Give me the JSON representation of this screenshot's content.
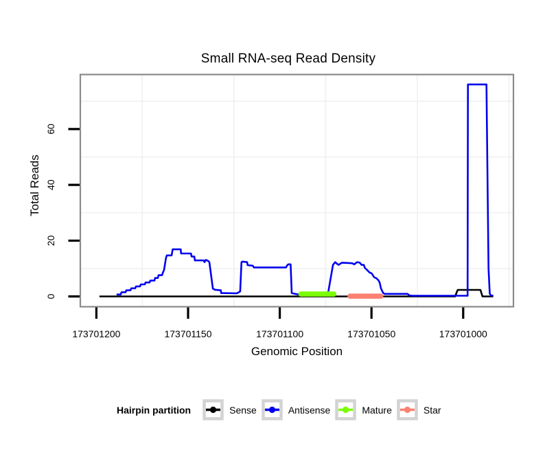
{
  "chart_data": {
    "type": "line",
    "title": "Small RNA-seq Read Density",
    "xlabel": "Genomic Position",
    "ylabel": "Total Reads",
    "x_axis": {
      "ticks": [
        173701200,
        173701150,
        173701100,
        173701050,
        173701000
      ],
      "direction": "decreasing-left-to-right",
      "range_left_to_right": [
        173701209,
        173700973
      ]
    },
    "y_axis": {
      "ticks": [
        0,
        20,
        40,
        60
      ],
      "range": [
        -4,
        80.5
      ]
    },
    "grid": {
      "x_minor_lines": [
        173701175,
        173701125,
        173701075,
        173701025,
        173700975
      ],
      "y_minor_lines": [
        10,
        30,
        50,
        70
      ],
      "color": "#f0f0f0"
    },
    "legend": {
      "title": "Hairpin partition",
      "position": "bottom",
      "entries": [
        {
          "id": "sense",
          "label": "Sense",
          "color": "#000000"
        },
        {
          "id": "antisense",
          "label": "Antisense",
          "color": "#0000EE"
        },
        {
          "id": "mature",
          "label": "Mature",
          "color": "#7CFC00"
        },
        {
          "id": "star",
          "label": "Star",
          "color": "#FA8072"
        }
      ],
      "key_box_border_color": "#D3D3D3"
    },
    "series": [
      {
        "name": "Sense",
        "color": "#000000",
        "line_width": 2.6,
        "points": [
          [
            173701198.3,
            0
          ],
          [
            173701004.4,
            0
          ],
          [
            173701003.0,
            2.35
          ],
          [
            173700990.6,
            2.35
          ],
          [
            173700989.5,
            0
          ],
          [
            173700983.6,
            0
          ]
        ]
      },
      {
        "name": "Antisense",
        "color": "#0000EE",
        "line_width": 2.6,
        "points": [
          [
            173701189.0,
            0.7
          ],
          [
            173701186.7,
            0.7
          ],
          [
            173701186.3,
            1.5
          ],
          [
            173701184.1,
            1.5
          ],
          [
            173701183.7,
            2.2
          ],
          [
            173701181.4,
            2.2
          ],
          [
            173701181.0,
            2.9
          ],
          [
            173701178.8,
            2.9
          ],
          [
            173701178.4,
            3.6
          ],
          [
            173701176.2,
            3.6
          ],
          [
            173701175.8,
            4.3
          ],
          [
            173701173.6,
            4.3
          ],
          [
            173701173.2,
            5.0
          ],
          [
            173701171.0,
            5.0
          ],
          [
            173701170.6,
            5.7
          ],
          [
            173701168.3,
            5.7
          ],
          [
            173701168.0,
            6.6
          ],
          [
            173701166.5,
            6.6
          ],
          [
            173701166.1,
            7.6
          ],
          [
            173701164.2,
            7.6
          ],
          [
            173701163.8,
            8.4
          ],
          [
            173701163.1,
            9.5
          ],
          [
            173701162.0,
            13.9
          ],
          [
            173701161.6,
            14.7
          ],
          [
            173701159.0,
            14.7
          ],
          [
            173701158.4,
            16.9
          ],
          [
            173701154.0,
            16.9
          ],
          [
            173701153.8,
            15.4
          ],
          [
            173701148.4,
            15.4
          ],
          [
            173701148.1,
            14.3
          ],
          [
            173701146.6,
            14.3
          ],
          [
            173701146.3,
            12.9
          ],
          [
            173701141.5,
            12.9
          ],
          [
            173701141.0,
            12.3
          ],
          [
            173701140.3,
            13.1
          ],
          [
            173701139.0,
            12.7
          ],
          [
            173701138.4,
            12.3
          ],
          [
            173701136.5,
            2.8
          ],
          [
            173701135.3,
            2.4
          ],
          [
            173701132.1,
            2.2
          ],
          [
            173701132.0,
            1.2
          ],
          [
            173701123.4,
            1.1
          ],
          [
            173701121.6,
            1.8
          ],
          [
            173701120.9,
            12.3
          ],
          [
            173701120.4,
            12.5
          ],
          [
            173701117.8,
            12.3
          ],
          [
            173701117.5,
            11.2
          ],
          [
            173701114.7,
            11.0
          ],
          [
            173701114.1,
            10.4
          ],
          [
            173701096.6,
            10.4
          ],
          [
            173701096.1,
            11.0
          ],
          [
            173701095.4,
            11.5
          ],
          [
            173701094.1,
            11.5
          ],
          [
            173701093.7,
            5.0
          ],
          [
            173701093.5,
            1.2
          ],
          [
            173701091.6,
            0.9
          ],
          [
            173701089.0,
            0.6
          ],
          [
            173701074.4,
            0.6
          ],
          [
            173701074.0,
            1.2
          ],
          [
            173701073.5,
            1.8
          ],
          [
            173701071.0,
            11.3
          ],
          [
            173701069.8,
            12.3
          ],
          [
            173701068.8,
            11.7
          ],
          [
            173701067.9,
            11.3
          ],
          [
            173701066.6,
            11.9
          ],
          [
            173701066.0,
            12.1
          ],
          [
            173701060.5,
            11.9
          ],
          [
            173701059.4,
            11.5
          ],
          [
            173701057.9,
            12.3
          ],
          [
            173701056.4,
            12.1
          ],
          [
            173701055.4,
            11.3
          ],
          [
            173701054.2,
            11.3
          ],
          [
            173701053.6,
            10.2
          ],
          [
            173701052.3,
            9.4
          ],
          [
            173701051.1,
            8.6
          ],
          [
            173701049.8,
            8.2
          ],
          [
            173701048.6,
            6.9
          ],
          [
            173701047.3,
            6.5
          ],
          [
            173701046.1,
            5.7
          ],
          [
            173701045.5,
            4.9
          ],
          [
            173701044.8,
            2.8
          ],
          [
            173701044.2,
            2.0
          ],
          [
            173701043.6,
            1.2
          ],
          [
            173701042.9,
            0.9
          ],
          [
            173701030.3,
            0.9
          ],
          [
            173701029.4,
            0.4
          ],
          [
            173701028.0,
            0.25
          ],
          [
            173700997.6,
            0.25
          ],
          [
            173700997.4,
            76.0
          ],
          [
            173700987.3,
            76.0
          ],
          [
            173700986.2,
            10.0
          ],
          [
            173700985.5,
            1.0
          ],
          [
            173700984.8,
            0.3
          ],
          [
            173700983.6,
            0.3
          ]
        ]
      },
      {
        "name": "Mature",
        "color": "#7CFC00",
        "line_width": 7.5,
        "cap": "round",
        "points": [
          [
            173701088.5,
            0.85
          ],
          [
            173701070.5,
            0.85
          ]
        ]
      },
      {
        "name": "Star",
        "color": "#FA8072",
        "line_width": 7.5,
        "cap": "round",
        "points": [
          [
            173701061.7,
            0.1
          ],
          [
            173701044.9,
            0.1
          ]
        ]
      }
    ],
    "panel_border_color": "#8A8A8A"
  }
}
